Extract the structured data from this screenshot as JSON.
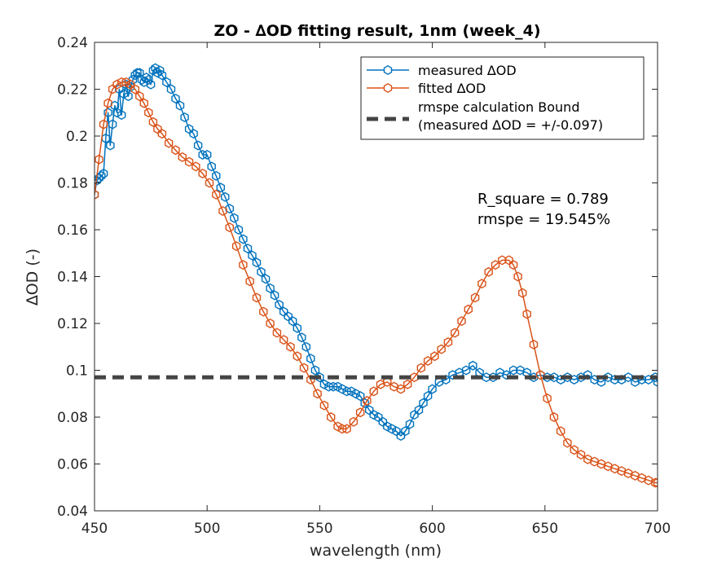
{
  "chart_data": {
    "type": "line",
    "title": "ZO - ∆OD fitting result, 1nm (week_4)",
    "xlabel": "wavelength (nm)",
    "ylabel": "∆OD (-)",
    "xlim": [
      450,
      700
    ],
    "ylim": [
      0.04,
      0.24
    ],
    "xticks": [
      450,
      500,
      550,
      600,
      650,
      700
    ],
    "yticks": [
      0.04,
      0.06,
      0.08,
      0.1,
      0.12,
      0.14,
      0.16,
      0.18,
      0.2,
      0.22,
      0.24
    ],
    "ytick_labels": [
      "0.04",
      "0.06",
      "0.08",
      "0.1",
      "0.12",
      "0.14",
      "0.16",
      "0.18",
      "0.2",
      "0.22",
      "0.24"
    ],
    "grid": false,
    "legend_location": "top-right",
    "annotations": [
      "R_square = 0.789",
      "rmspe = 19.545%"
    ],
    "series": [
      {
        "name": "measured ∆OD",
        "color": "#0072BD",
        "marker": "hexagon",
        "x": [
          450,
          451,
          452,
          453,
          454,
          455,
          456,
          457,
          458,
          459,
          460,
          461,
          462,
          463,
          464,
          465,
          466,
          467,
          468,
          469,
          470,
          471,
          472,
          473,
          474,
          475,
          476,
          477,
          478,
          479,
          480,
          482,
          484,
          486,
          488,
          490,
          492,
          494,
          496,
          498,
          500,
          502,
          504,
          506,
          508,
          510,
          512,
          514,
          516,
          518,
          520,
          522,
          524,
          526,
          528,
          530,
          532,
          534,
          536,
          538,
          540,
          542,
          544,
          546,
          548,
          550,
          552,
          554,
          556,
          558,
          560,
          562,
          564,
          566,
          568,
          570,
          572,
          574,
          576,
          578,
          580,
          582,
          584,
          586,
          588,
          590,
          592,
          594,
          596,
          598,
          600,
          603,
          606,
          609,
          612,
          615,
          618,
          621,
          624,
          627,
          630,
          633,
          636,
          639,
          642,
          645,
          648,
          651,
          654,
          657,
          660,
          663,
          666,
          669,
          672,
          675,
          678,
          681,
          684,
          687,
          690,
          693,
          696,
          699,
          700
        ],
        "y": [
          0.175,
          0.181,
          0.182,
          0.183,
          0.184,
          0.199,
          0.21,
          0.196,
          0.205,
          0.213,
          0.21,
          0.22,
          0.209,
          0.218,
          0.222,
          0.217,
          0.221,
          0.224,
          0.226,
          0.227,
          0.227,
          0.224,
          0.223,
          0.225,
          0.224,
          0.222,
          0.228,
          0.229,
          0.227,
          0.228,
          0.226,
          0.223,
          0.22,
          0.216,
          0.213,
          0.208,
          0.203,
          0.201,
          0.196,
          0.192,
          0.192,
          0.187,
          0.183,
          0.178,
          0.174,
          0.169,
          0.165,
          0.16,
          0.156,
          0.152,
          0.149,
          0.146,
          0.142,
          0.139,
          0.135,
          0.132,
          0.128,
          0.125,
          0.123,
          0.121,
          0.118,
          0.114,
          0.11,
          0.105,
          0.1,
          0.097,
          0.094,
          0.093,
          0.093,
          0.093,
          0.092,
          0.091,
          0.091,
          0.09,
          0.089,
          0.086,
          0.083,
          0.081,
          0.08,
          0.078,
          0.076,
          0.075,
          0.074,
          0.072,
          0.074,
          0.077,
          0.081,
          0.083,
          0.086,
          0.089,
          0.092,
          0.095,
          0.096,
          0.098,
          0.099,
          0.1,
          0.102,
          0.099,
          0.097,
          0.097,
          0.099,
          0.098,
          0.1,
          0.1,
          0.099,
          0.097,
          0.098,
          0.097,
          0.097,
          0.096,
          0.097,
          0.096,
          0.097,
          0.098,
          0.096,
          0.095,
          0.097,
          0.096,
          0.096,
          0.097,
          0.095,
          0.096,
          0.096,
          0.097,
          0.095
        ]
      },
      {
        "name": "fitted ∆OD",
        "color": "#D95319",
        "marker": "hexagon",
        "x": [
          450,
          452,
          454,
          456,
          458,
          460,
          462,
          464,
          466,
          468,
          470,
          472,
          474,
          476,
          478,
          480,
          483,
          486,
          489,
          492,
          495,
          498,
          501,
          504,
          507,
          510,
          513,
          516,
          519,
          522,
          525,
          528,
          531,
          534,
          537,
          540,
          543,
          546,
          549,
          552,
          555,
          558,
          560,
          562,
          565,
          568,
          571,
          574,
          577,
          580,
          583,
          586,
          589,
          592,
          595,
          598,
          601,
          604,
          607,
          610,
          613,
          616,
          619,
          622,
          625,
          628,
          631,
          634,
          636,
          638,
          640,
          642,
          645,
          648,
          651,
          654,
          657,
          660,
          663,
          666,
          669,
          672,
          675,
          678,
          681,
          684,
          687,
          690,
          693,
          696,
          699,
          700
        ],
        "y": [
          0.175,
          0.19,
          0.205,
          0.214,
          0.22,
          0.222,
          0.223,
          0.223,
          0.222,
          0.22,
          0.217,
          0.214,
          0.21,
          0.206,
          0.203,
          0.201,
          0.197,
          0.194,
          0.191,
          0.189,
          0.187,
          0.184,
          0.18,
          0.175,
          0.168,
          0.161,
          0.153,
          0.145,
          0.138,
          0.131,
          0.125,
          0.12,
          0.116,
          0.113,
          0.11,
          0.106,
          0.101,
          0.096,
          0.09,
          0.085,
          0.08,
          0.076,
          0.075,
          0.075,
          0.078,
          0.082,
          0.087,
          0.091,
          0.094,
          0.095,
          0.093,
          0.092,
          0.094,
          0.097,
          0.101,
          0.104,
          0.106,
          0.109,
          0.112,
          0.116,
          0.121,
          0.126,
          0.131,
          0.137,
          0.142,
          0.145,
          0.147,
          0.147,
          0.145,
          0.14,
          0.133,
          0.124,
          0.111,
          0.098,
          0.088,
          0.08,
          0.074,
          0.069,
          0.066,
          0.064,
          0.062,
          0.061,
          0.06,
          0.059,
          0.058,
          0.057,
          0.056,
          0.055,
          0.054,
          0.053,
          0.052,
          0.052
        ]
      },
      {
        "name": "rmspe calculation Bound",
        "name_line2": "(measured ∆OD = +/-0.097)",
        "color": "#444444",
        "style": "dashed",
        "x": [
          450,
          700
        ],
        "y": [
          0.097,
          0.097
        ]
      }
    ]
  }
}
